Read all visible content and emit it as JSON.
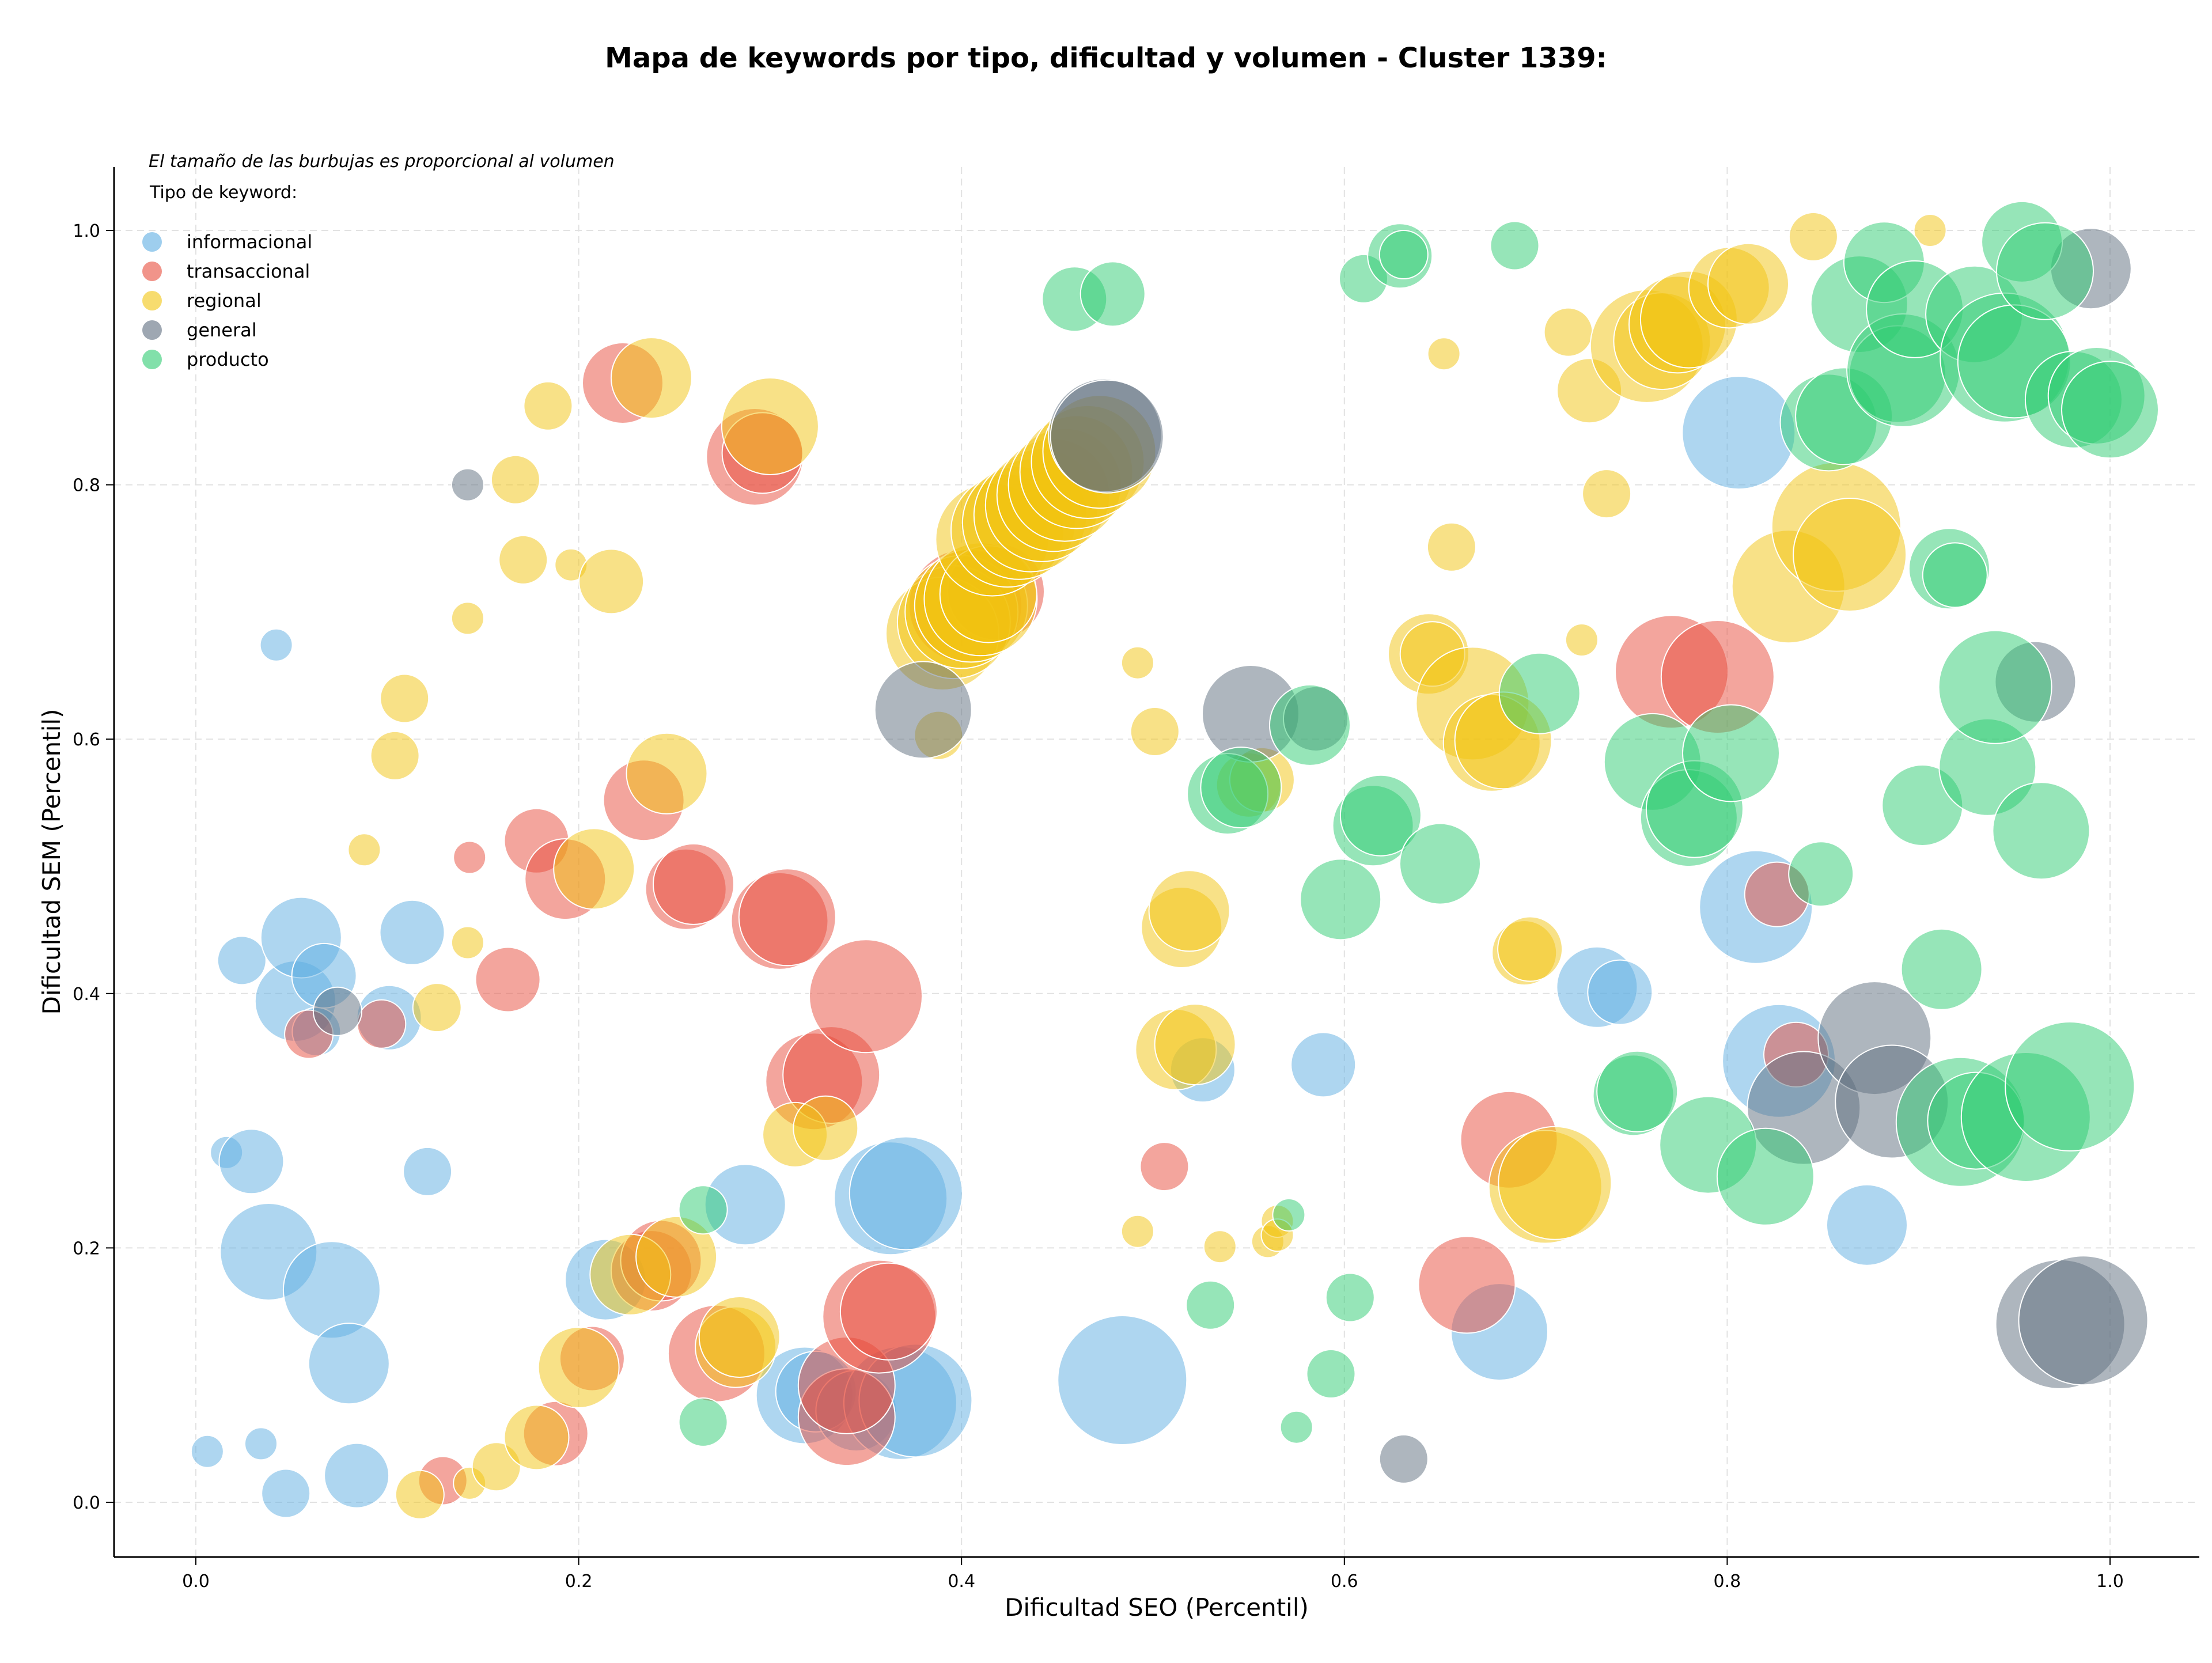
{
  "chart_data": {
    "type": "scatter",
    "title": "Mapa de keywords por tipo, dificultad y volumen - Cluster 1339:",
    "xlabel": "Dificultad SEO (Percentil)",
    "ylabel": "Dificultad SEM (Percentil)",
    "xlim": [
      -0.04,
      1.05
    ],
    "ylim": [
      -0.04,
      1.05
    ],
    "x_ticks": [
      "0.0",
      "0.2",
      "0.4",
      "0.6",
      "0.8",
      "1.0"
    ],
    "y_ticks": [
      "0.0",
      "0.2",
      "0.4",
      "0.6",
      "0.8",
      "1.0"
    ],
    "grid": true,
    "legend_position": "top-left",
    "legend_note": "El tamaño de las burbujas es proporcional al volumen",
    "legend_title": "Tipo de keyword:",
    "series": [
      {
        "name": "informacional",
        "color": "#5DADE2",
        "points": [
          [
            0.042,
            0.674,
            2
          ],
          [
            0.006,
            0.04,
            2
          ],
          [
            0.016,
            0.275,
            2
          ],
          [
            0.024,
            0.426,
            3
          ],
          [
            0.034,
            0.046,
            2
          ],
          [
            0.047,
            0.007,
            3
          ],
          [
            0.029,
            0.268,
            4
          ],
          [
            0.038,
            0.197,
            6
          ],
          [
            0.052,
            0.394,
            5
          ],
          [
            0.055,
            0.444,
            5
          ],
          [
            0.067,
            0.414,
            4
          ],
          [
            0.071,
            0.167,
            6
          ],
          [
            0.063,
            0.37,
            3
          ],
          [
            0.08,
            0.109,
            5
          ],
          [
            0.084,
            0.021,
            4
          ],
          [
            0.101,
            0.381,
            4
          ],
          [
            0.113,
            0.448,
            4
          ],
          [
            0.121,
            0.26,
            3
          ],
          [
            0.214,
            0.175,
            5
          ],
          [
            0.287,
            0.234,
            5
          ],
          [
            0.318,
            0.084,
            6
          ],
          [
            0.324,
            0.087,
            5
          ],
          [
            0.345,
            0.072,
            5
          ],
          [
            0.363,
            0.239,
            7
          ],
          [
            0.371,
            0.243,
            7
          ],
          [
            0.368,
            0.078,
            7
          ],
          [
            0.376,
            0.08,
            7
          ],
          [
            0.484,
            0.096,
            8
          ],
          [
            0.526,
            0.34,
            4
          ],
          [
            0.589,
            0.344,
            4
          ],
          [
            0.681,
            0.134,
            6
          ],
          [
            0.732,
            0.405,
            5
          ],
          [
            0.744,
            0.401,
            4
          ],
          [
            0.806,
            0.841,
            7
          ],
          [
            0.815,
            0.468,
            7
          ],
          [
            0.827,
            0.347,
            7
          ],
          [
            0.873,
            0.218,
            5
          ]
        ]
      },
      {
        "name": "transaccional",
        "color": "#E74C3C",
        "points": [
          [
            0.059,
            0.368,
            3
          ],
          [
            0.097,
            0.376,
            3
          ],
          [
            0.129,
            0.017,
            3
          ],
          [
            0.143,
            0.507,
            2
          ],
          [
            0.163,
            0.411,
            4
          ],
          [
            0.178,
            0.52,
            4
          ],
          [
            0.193,
            0.49,
            5
          ],
          [
            0.188,
            0.054,
            4
          ],
          [
            0.207,
            0.113,
            4
          ],
          [
            0.223,
            0.88,
            5
          ],
          [
            0.234,
            0.552,
            5
          ],
          [
            0.238,
            0.182,
            5
          ],
          [
            0.243,
            0.19,
            5
          ],
          [
            0.256,
            0.482,
            5
          ],
          [
            0.26,
            0.486,
            5
          ],
          [
            0.272,
            0.117,
            6
          ],
          [
            0.292,
            0.822,
            6
          ],
          [
            0.296,
            0.825,
            5
          ],
          [
            0.305,
            0.457,
            6
          ],
          [
            0.309,
            0.46,
            6
          ],
          [
            0.323,
            0.331,
            6
          ],
          [
            0.332,
            0.336,
            6
          ],
          [
            0.34,
            0.067,
            6
          ],
          [
            0.34,
            0.092,
            6
          ],
          [
            0.35,
            0.398,
            7
          ],
          [
            0.357,
            0.146,
            7
          ],
          [
            0.362,
            0.15,
            6
          ],
          [
            0.402,
            0.705,
            7
          ],
          [
            0.418,
            0.716,
            6
          ],
          [
            0.506,
            0.264,
            3
          ],
          [
            0.664,
            0.171,
            6
          ],
          [
            0.686,
            0.285,
            6
          ],
          [
            0.771,
            0.653,
            7
          ],
          [
            0.795,
            0.649,
            7
          ],
          [
            0.826,
            0.478,
            4
          ],
          [
            0.836,
            0.352,
            4
          ]
        ]
      },
      {
        "name": "regional",
        "color": "#F1C40F",
        "points": [
          [
            0.088,
            0.513,
            2
          ],
          [
            0.104,
            0.587,
            3
          ],
          [
            0.109,
            0.632,
            3
          ],
          [
            0.117,
            0.006,
            3
          ],
          [
            0.126,
            0.389,
            3
          ],
          [
            0.142,
            0.44,
            2
          ],
          [
            0.142,
            0.695,
            2
          ],
          [
            0.143,
            0.015,
            2
          ],
          [
            0.157,
            0.028,
            3
          ],
          [
            0.167,
            0.804,
            3
          ],
          [
            0.171,
            0.741,
            3
          ],
          [
            0.178,
            0.051,
            4
          ],
          [
            0.184,
            0.862,
            3
          ],
          [
            0.196,
            0.737,
            2
          ],
          [
            0.2,
            0.106,
            5
          ],
          [
            0.208,
            0.498,
            5
          ],
          [
            0.217,
            0.724,
            4
          ],
          [
            0.227,
            0.179,
            5
          ],
          [
            0.238,
            0.884,
            5
          ],
          [
            0.246,
            0.573,
            5
          ],
          [
            0.251,
            0.193,
            5
          ],
          [
            0.282,
            0.122,
            5
          ],
          [
            0.284,
            0.13,
            5
          ],
          [
            0.3,
            0.846,
            6
          ],
          [
            0.313,
            0.289,
            4
          ],
          [
            0.329,
            0.294,
            4
          ],
          [
            0.388,
            0.603,
            3
          ],
          [
            0.39,
            0.683,
            7
          ],
          [
            0.396,
            0.692,
            7
          ],
          [
            0.4,
            0.7,
            7
          ],
          [
            0.405,
            0.705,
            7
          ],
          [
            0.41,
            0.71,
            7
          ],
          [
            0.414,
            0.714,
            6
          ],
          [
            0.416,
            0.757,
            7
          ],
          [
            0.424,
            0.764,
            7
          ],
          [
            0.43,
            0.77,
            7
          ],
          [
            0.436,
            0.776,
            7
          ],
          [
            0.442,
            0.784,
            7
          ],
          [
            0.448,
            0.792,
            7
          ],
          [
            0.454,
            0.8,
            7
          ],
          [
            0.46,
            0.81,
            7
          ],
          [
            0.466,
            0.818,
            7
          ],
          [
            0.472,
            0.826,
            7
          ],
          [
            0.492,
            0.213,
            2
          ],
          [
            0.492,
            0.66,
            2
          ],
          [
            0.501,
            0.606,
            3
          ],
          [
            0.515,
            0.452,
            5
          ],
          [
            0.519,
            0.465,
            5
          ],
          [
            0.512,
            0.356,
            5
          ],
          [
            0.522,
            0.36,
            5
          ],
          [
            0.535,
            0.201,
            2
          ],
          [
            0.55,
            0.564,
            4
          ],
          [
            0.557,
            0.568,
            4
          ],
          [
            0.56,
            0.205,
            2
          ],
          [
            0.565,
            0.221,
            2
          ],
          [
            0.565,
            0.21,
            2
          ],
          [
            0.644,
            0.667,
            5
          ],
          [
            0.646,
            0.667,
            4
          ],
          [
            0.652,
            0.903,
            2
          ],
          [
            0.656,
            0.751,
            3
          ],
          [
            0.667,
            0.628,
            7
          ],
          [
            0.677,
            0.597,
            6
          ],
          [
            0.683,
            0.599,
            6
          ],
          [
            0.694,
            0.432,
            4
          ],
          [
            0.697,
            0.435,
            4
          ],
          [
            0.705,
            0.248,
            7
          ],
          [
            0.71,
            0.251,
            7
          ],
          [
            0.717,
            0.92,
            3
          ],
          [
            0.724,
            0.678,
            2
          ],
          [
            0.728,
            0.874,
            4
          ],
          [
            0.737,
            0.793,
            3
          ],
          [
            0.758,
            0.909,
            7
          ],
          [
            0.766,
            0.913,
            6
          ],
          [
            0.774,
            0.926,
            6
          ],
          [
            0.78,
            0.93,
            6
          ],
          [
            0.801,
            0.955,
            5
          ],
          [
            0.811,
            0.958,
            5
          ],
          [
            0.832,
            0.72,
            7
          ],
          [
            0.845,
            0.995,
            3
          ],
          [
            0.857,
            0.767,
            8
          ],
          [
            0.864,
            0.745,
            7
          ],
          [
            0.906,
            1.0,
            2
          ]
        ]
      },
      {
        "name": "general",
        "color": "#5D6D7E",
        "points": [
          [
            0.074,
            0.386,
            3
          ],
          [
            0.142,
            0.8,
            2
          ],
          [
            0.38,
            0.623,
            6
          ],
          [
            0.475,
            0.839,
            7
          ],
          [
            0.476,
            0.838,
            7
          ],
          [
            0.551,
            0.62,
            6
          ],
          [
            0.585,
            0.616,
            4
          ],
          [
            0.631,
            0.034,
            3
          ],
          [
            0.84,
            0.31,
            7
          ],
          [
            0.877,
            0.365,
            7
          ],
          [
            0.886,
            0.315,
            7
          ],
          [
            0.961,
            0.645,
            5
          ],
          [
            0.974,
            0.14,
            8
          ],
          [
            0.986,
            0.143,
            8
          ],
          [
            0.99,
            0.97,
            5
          ]
        ]
      },
      {
        "name": "producto",
        "color": "#2ECC71",
        "points": [
          [
            0.265,
            0.23,
            3
          ],
          [
            0.265,
            0.063,
            3
          ],
          [
            0.459,
            0.946,
            4
          ],
          [
            0.479,
            0.95,
            4
          ],
          [
            0.53,
            0.155,
            3
          ],
          [
            0.539,
            0.557,
            5
          ],
          [
            0.546,
            0.562,
            5
          ],
          [
            0.571,
            0.226,
            2
          ],
          [
            0.575,
            0.059,
            2
          ],
          [
            0.582,
            0.611,
            5
          ],
          [
            0.593,
            0.101,
            3
          ],
          [
            0.598,
            0.474,
            5
          ],
          [
            0.603,
            0.161,
            3
          ],
          [
            0.61,
            0.962,
            3
          ],
          [
            0.615,
            0.532,
            5
          ],
          [
            0.619,
            0.54,
            5
          ],
          [
            0.629,
            0.98,
            4
          ],
          [
            0.631,
            0.981,
            3
          ],
          [
            0.65,
            0.502,
            5
          ],
          [
            0.689,
            0.988,
            3
          ],
          [
            0.702,
            0.636,
            5
          ],
          [
            0.751,
            0.32,
            5
          ],
          [
            0.753,
            0.323,
            5
          ],
          [
            0.761,
            0.582,
            6
          ],
          [
            0.78,
            0.538,
            6
          ],
          [
            0.783,
            0.545,
            6
          ],
          [
            0.79,
            0.281,
            6
          ],
          [
            0.802,
            0.589,
            6
          ],
          [
            0.82,
            0.256,
            6
          ],
          [
            0.849,
            0.494,
            4
          ],
          [
            0.853,
            0.849,
            6
          ],
          [
            0.861,
            0.854,
            6
          ],
          [
            0.869,
            0.942,
            6
          ],
          [
            0.882,
            0.975,
            5
          ],
          [
            0.889,
            0.887,
            6
          ],
          [
            0.892,
            0.89,
            7
          ],
          [
            0.898,
            0.938,
            6
          ],
          [
            0.902,
            0.548,
            5
          ],
          [
            0.912,
            0.419,
            5
          ],
          [
            0.916,
            0.734,
            5
          ],
          [
            0.919,
            0.729,
            4
          ],
          [
            0.922,
            0.299,
            8
          ],
          [
            0.929,
            0.934,
            6
          ],
          [
            0.93,
            0.3,
            6
          ],
          [
            0.936,
            0.578,
            6
          ],
          [
            0.94,
            0.641,
            7
          ],
          [
            0.945,
            0.9,
            8
          ],
          [
            0.95,
            0.897,
            7
          ],
          [
            0.956,
            0.303,
            8
          ],
          [
            0.954,
            0.991,
            5
          ],
          [
            0.964,
            0.528,
            6
          ],
          [
            0.966,
            0.968,
            6
          ],
          [
            0.979,
            0.327,
            8
          ],
          [
            0.981,
            0.867,
            6
          ],
          [
            0.993,
            0.87,
            6
          ],
          [
            1.0,
            0.859,
            6
          ]
        ]
      }
    ]
  }
}
